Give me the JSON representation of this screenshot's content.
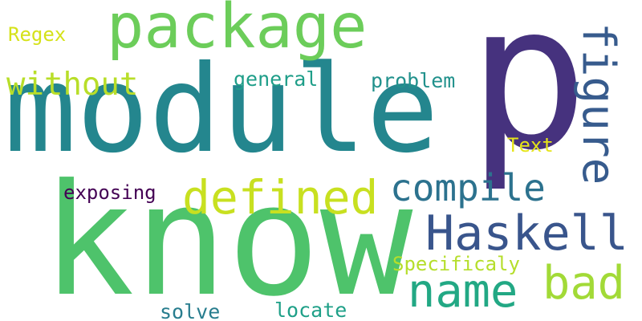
{
  "words": [
    {
      "text": "p",
      "color": "#46327e"
    },
    {
      "text": "module",
      "color": "#24868e"
    },
    {
      "text": "know",
      "color": "#4ec36b"
    },
    {
      "text": "package",
      "color": "#6ccd5a"
    },
    {
      "text": "defined",
      "color": "#c8e020"
    },
    {
      "text": "compile",
      "color": "#2c728e"
    },
    {
      "text": "Haskell",
      "color": "#39558c"
    },
    {
      "text": "figure",
      "color": "#375b8d"
    },
    {
      "text": "without",
      "color": "#b8de29"
    },
    {
      "text": "name",
      "color": "#22a884"
    },
    {
      "text": "bad",
      "color": "#a2da37"
    },
    {
      "text": "general",
      "color": "#1f9e89"
    },
    {
      "text": "problem",
      "color": "#21918c"
    },
    {
      "text": "Regex",
      "color": "#d5e21a"
    },
    {
      "text": "Text",
      "color": "#e5e419"
    },
    {
      "text": "exposing",
      "color": "#440154"
    },
    {
      "text": "Specificaly",
      "color": "#b5de2b"
    },
    {
      "text": "solve",
      "color": "#287d8e"
    },
    {
      "text": "locate",
      "color": "#1fa088"
    }
  ]
}
